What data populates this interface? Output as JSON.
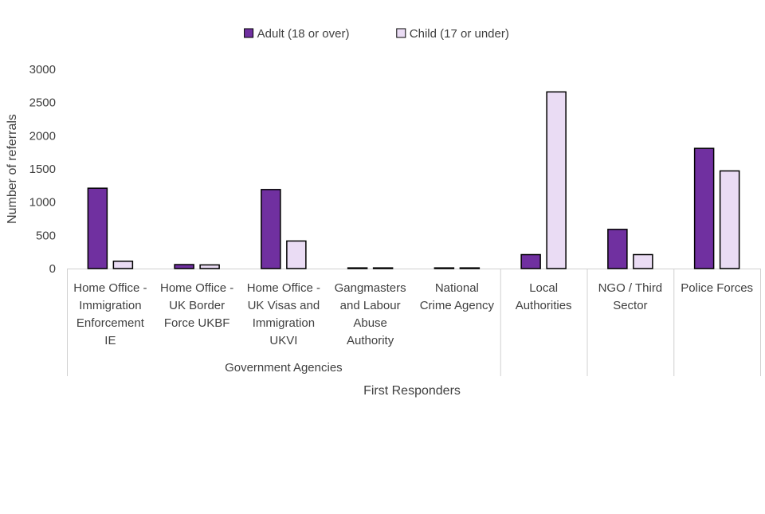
{
  "chart_data": {
    "type": "bar",
    "title": "",
    "ylabel": "Number of referrals",
    "xlabel": "First Responders",
    "ylim": [
      0,
      3000
    ],
    "yticks": [
      0,
      500,
      1000,
      1500,
      2000,
      2500,
      3000
    ],
    "categories": [
      [
        "Home Office -",
        "Immigration",
        "Enforcement",
        "IE"
      ],
      [
        "Home Office -",
        "UK Border",
        "Force UKBF"
      ],
      [
        "Home Office -",
        "UK Visas and",
        "Immigration",
        "UKVI"
      ],
      [
        "Gangmasters",
        "and Labour",
        "Abuse",
        "Authority"
      ],
      [
        "National",
        "Crime Agency"
      ],
      [
        "Local",
        "Authorities"
      ],
      [
        "NGO / Third",
        "Sector"
      ],
      [
        "Police Forces"
      ]
    ],
    "groups": [
      {
        "label": "Government Agencies",
        "start": 0,
        "end": 4
      },
      {
        "label": "",
        "start": 5,
        "end": 5
      },
      {
        "label": "",
        "start": 6,
        "end": 6
      },
      {
        "label": "",
        "start": 7,
        "end": 7
      }
    ],
    "series": [
      {
        "name": "Adult (18 or over)",
        "color": "#7030A0",
        "values": [
          1210,
          60,
          1190,
          10,
          10,
          210,
          590,
          1810
        ]
      },
      {
        "name": "Child (17 or under)",
        "color": "#EADCF4",
        "values": [
          110,
          55,
          415,
          10,
          10,
          2660,
          210,
          1470
        ]
      }
    ],
    "legend_position": "top-center",
    "grid": false
  }
}
